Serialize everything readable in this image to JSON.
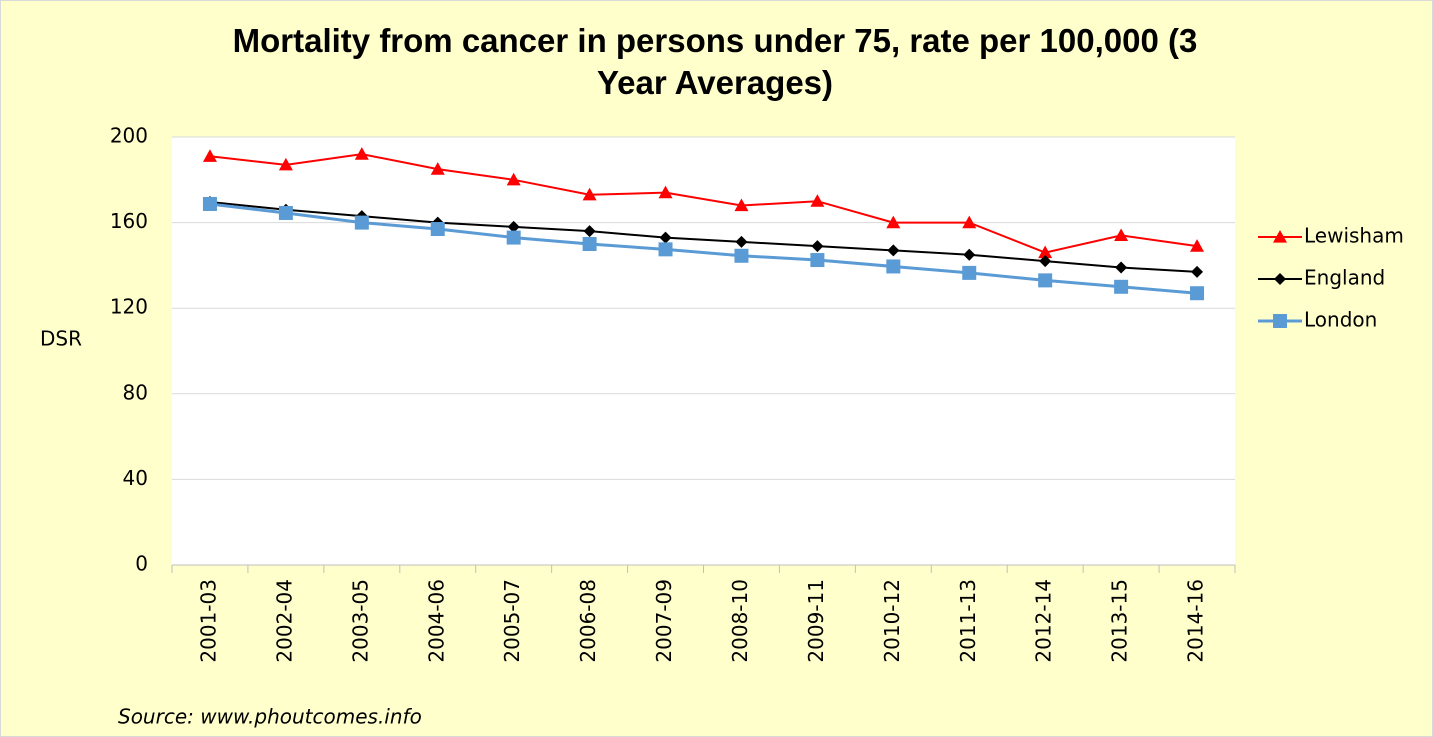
{
  "chart_data": {
    "type": "line",
    "title": "Mortality from cancer in persons under 75, rate per 100,000 (3 Year Averages)",
    "y_label": "DSR",
    "source": "Source:  www.phoutcomes.info",
    "categories": [
      "2001-03",
      "2002-04",
      "2003-05",
      "2004-06",
      "2005-07",
      "2006-08",
      "2007-09",
      "2008-10",
      "2009-11",
      "2010-12",
      "2011-13",
      "2012-14",
      "2013-15",
      "2014-16"
    ],
    "series": [
      {
        "name": "Lewisham",
        "color": "#ff0000",
        "marker": "triangle",
        "values": [
          191,
          187,
          192,
          185,
          180,
          173,
          174,
          168,
          170,
          160,
          160,
          146,
          154,
          149
        ]
      },
      {
        "name": "England",
        "color": "#000000",
        "marker": "diamond",
        "values": [
          169.6,
          166,
          163,
          160,
          158,
          156,
          153,
          151,
          149,
          147,
          145,
          142,
          139,
          137
        ]
      },
      {
        "name": "London",
        "color": "#5b9bd5",
        "marker": "square",
        "values": [
          168.7,
          164.5,
          160,
          157,
          153,
          150,
          147.5,
          144.5,
          142.5,
          139.5,
          136.5,
          133,
          130,
          127
        ]
      }
    ],
    "ylim": [
      0,
      200
    ],
    "yticks": [
      0,
      40,
      80,
      120,
      160,
      200
    ],
    "grid": true,
    "legend": "right"
  }
}
